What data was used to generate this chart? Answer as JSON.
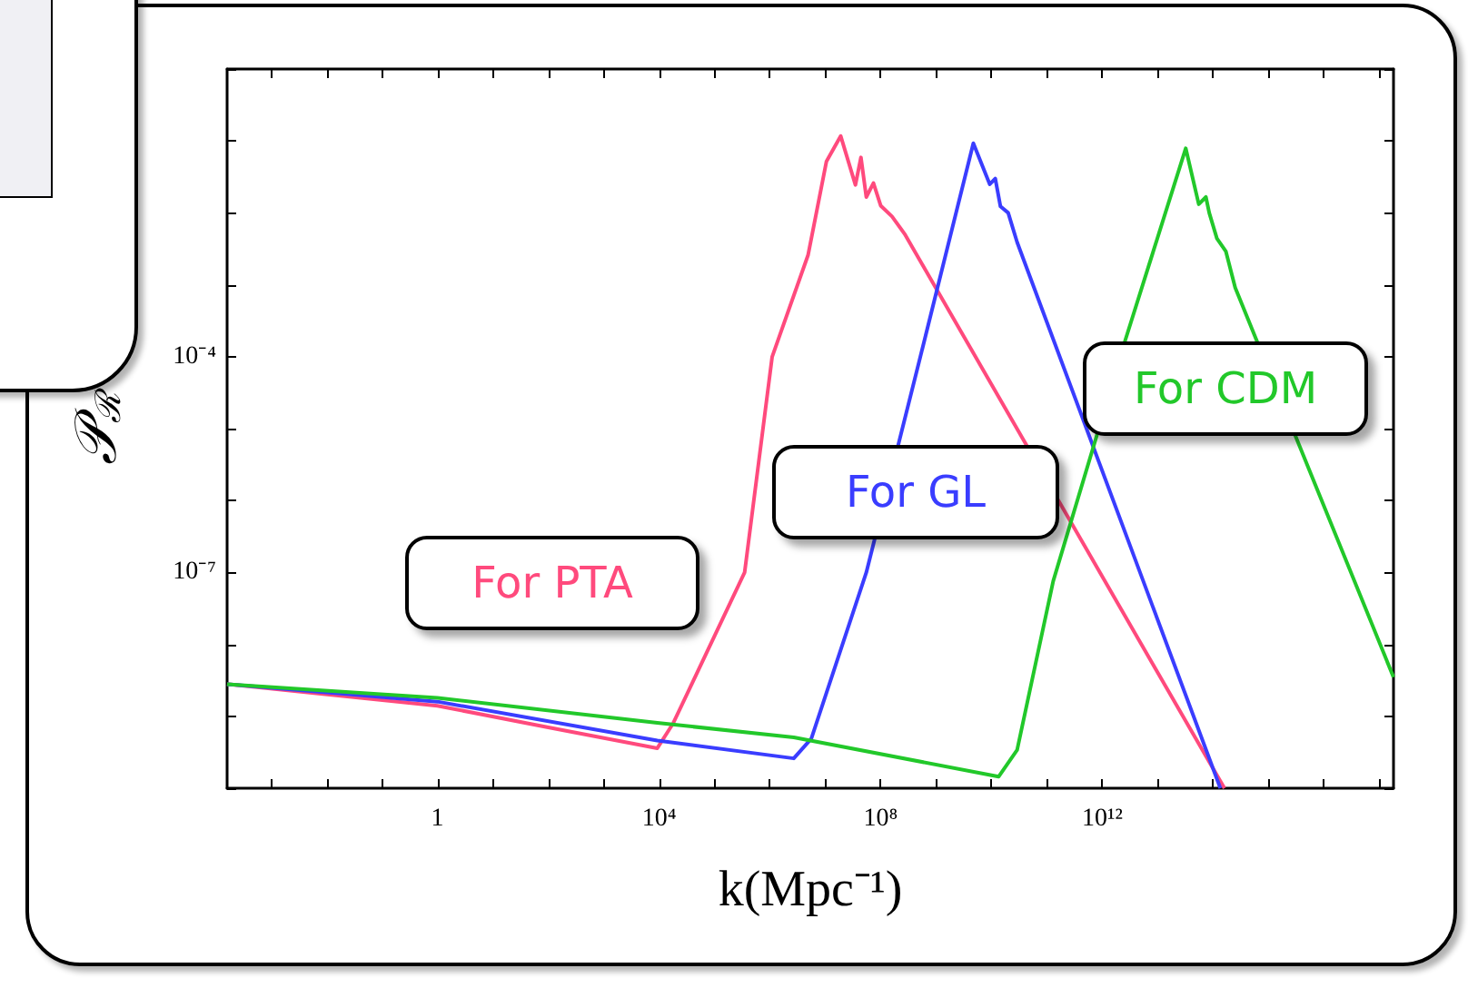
{
  "chart_data": {
    "type": "line",
    "xlabel": "k(Mpc⁻¹)",
    "ylabel": "𝒫$_{ℛ}$",
    "log": "xy",
    "marker": "none",
    "grid": false,
    "legend": false,
    "xlim": [
      0.00016,
      1.8e+17
    ],
    "ylim": [
      1e-10,
      1
    ],
    "xticks": [
      {
        "value": 0.001,
        "label": null
      },
      {
        "value": 0.01,
        "label": null
      },
      {
        "value": 0.1,
        "label": null
      },
      1,
      {
        "value": 10,
        "label": null
      },
      {
        "value": 100,
        "label": null
      },
      {
        "value": 1000,
        "label": null
      },
      {
        "value": 10000,
        "label": "10⁴"
      },
      {
        "value": 100000.0,
        "label": null
      },
      {
        "value": 1000000.0,
        "label": null
      },
      {
        "value": 10000000.0,
        "label": null
      },
      {
        "value": 100000000.0,
        "label": "10⁸"
      },
      {
        "value": 1000000000.0,
        "label": null
      },
      {
        "value": 10000000000.0,
        "label": null
      },
      {
        "value": 100000000000.0,
        "label": null
      },
      {
        "value": 1000000000000.0,
        "label": "10¹²"
      },
      {
        "value": 10000000000000.0,
        "label": null
      },
      {
        "value": 100000000000000.0,
        "label": null
      },
      {
        "value": 1000000000000000.0,
        "label": null
      },
      {
        "value": 1e+16,
        "label": null
      },
      {
        "value": 1e+17,
        "label": null
      }
    ],
    "yticks": [
      {
        "value": 1e-10,
        "label": null
      },
      {
        "value": 1e-09,
        "label": null
      },
      {
        "value": 1e-08,
        "label": null
      },
      {
        "value": 1e-07,
        "label": "10⁻⁷"
      },
      {
        "value": 1e-06,
        "label": null
      },
      {
        "value": 1e-05,
        "label": null
      },
      {
        "value": 0.0001,
        "label": "10⁻⁴"
      },
      {
        "value": 0.001,
        "label": null
      },
      {
        "value": 0.01,
        "label": null
      },
      {
        "value": 0.1,
        "label": null
      },
      {
        "value": 1,
        "label": null
      }
    ],
    "series": [
      {
        "name": "For PTA",
        "color": "#ff4a7d",
        "x": [
          0.00016,
          1,
          100,
          9300,
          18000,
          350000,
          1100000,
          4900000,
          10500000,
          19000000,
          35000000,
          44000000,
          55000000,
          74000000,
          100000000,
          160000000,
          270000000,
          160000000000000.0
        ],
        "values": [
          2.8e-09,
          1.4e-09,
          7e-10,
          3.6e-10,
          8e-10,
          1e-07,
          0.0001,
          0.0026,
          0.052,
          0.117,
          0.0245,
          0.059,
          0.0166,
          0.026,
          0.0126,
          0.0089,
          0.0051,
          1e-10
        ]
      },
      {
        "name": "For GL",
        "color": "#3a3dff",
        "x": [
          0.00016,
          1,
          9300,
          2700000,
          5600000,
          55000000,
          520000000,
          4700000000,
          9300000000,
          11700000000,
          14500000000,
          20000000000,
          29000000000,
          135000000000000.0
        ],
        "values": [
          2.8e-09,
          1.6e-09,
          4.6e-10,
          2.6e-10,
          4.9e-10,
          1e-07,
          0.0001,
          0.093,
          0.025,
          0.03,
          0.0123,
          0.01,
          0.0039,
          1e-10
        ]
      },
      {
        "name": "For CDM",
        "color": "#22c82a",
        "x": [
          0.00016,
          1,
          9300,
          2700000,
          13500000000,
          29000000000,
          130000000000,
          2600000000000,
          32000000000000,
          55000000000000,
          74000000000000,
          85000000000000,
          117000000000000.0,
          170000000000000.0,
          250000000000000.0,
          1.8e+17
        ],
        "values": [
          2.8e-09,
          1.8e-09,
          8.1e-10,
          5.1e-10,
          1.45e-10,
          3.4e-10,
          7.6e-08,
          0.00017,
          0.079,
          0.0132,
          0.0166,
          0.01,
          0.0044,
          0.0029,
          0.00091,
          3.5e-09
        ]
      }
    ]
  }
}
